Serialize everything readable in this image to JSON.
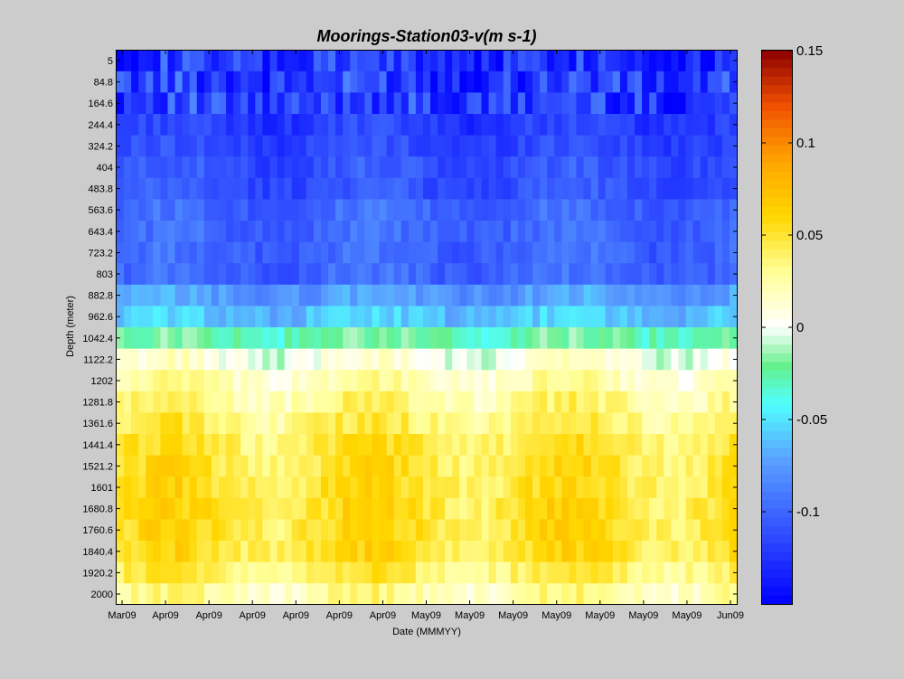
{
  "chart_data": {
    "type": "heatmap",
    "title": "Moorings-Station03-v(m s-1)",
    "xlabel": "Date (MMMYY)",
    "ylabel": "Depth (meter)",
    "x_tick_labels": [
      "Mar09",
      "Apr09",
      "Apr09",
      "Apr09",
      "Apr09",
      "Apr09",
      "Apr09",
      "May09",
      "May09",
      "May09",
      "May09",
      "May09",
      "May09",
      "May09",
      "Jun09"
    ],
    "y_tick_labels": [
      "5",
      "84.8",
      "164.6",
      "244.4",
      "324.2",
      "404",
      "483.8",
      "563.6",
      "643.4",
      "723.2",
      "803",
      "882.8",
      "962.6",
      "1042.4",
      "1122.2",
      "1202",
      "1281.8",
      "1361.6",
      "1441.4",
      "1521.2",
      "1601",
      "1680.8",
      "1760.6",
      "1840.4",
      "1920.2",
      "2000"
    ],
    "depths": [
      5,
      84.8,
      164.6,
      244.4,
      324.2,
      404,
      483.8,
      563.6,
      643.4,
      723.2,
      803,
      882.8,
      962.6,
      1042.4,
      1122.2,
      1202,
      1281.8,
      1361.6,
      1441.4,
      1521.2,
      1601,
      1680.8,
      1760.6,
      1840.4,
      1920.2,
      2000
    ],
    "depth_range": [
      5,
      2000
    ],
    "time_steps": 85,
    "colorbar": {
      "colormap": "jet-like with white at zero",
      "range": [
        -0.15,
        0.15
      ],
      "tick_labels": [
        "0.15",
        "0.1",
        "0.05",
        "0",
        "-0.05",
        "-0.1"
      ],
      "tick_values": [
        0.15,
        0.1,
        0.05,
        0,
        -0.05,
        -0.1
      ]
    },
    "depth_profile_mean": [
      -0.125,
      -0.12,
      -0.12,
      -0.12,
      -0.115,
      -0.11,
      -0.11,
      -0.1,
      -0.1,
      -0.1,
      -0.1,
      -0.075,
      -0.06,
      -0.025,
      0.005,
      0.02,
      0.03,
      0.038,
      0.045,
      0.048,
      0.05,
      0.052,
      0.052,
      0.05,
      0.04,
      0.025
    ]
  }
}
